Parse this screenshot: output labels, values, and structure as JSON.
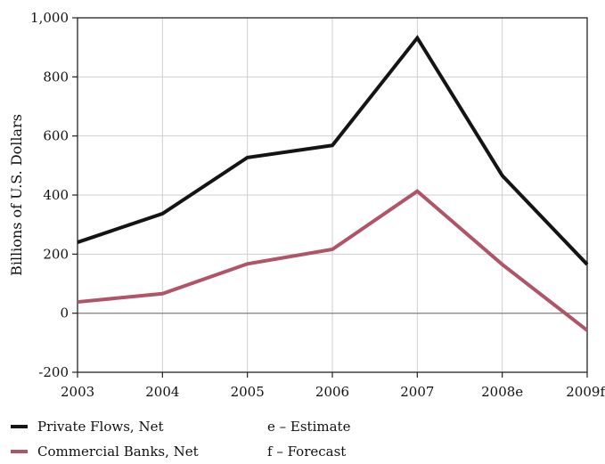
{
  "chart_data": {
    "type": "line",
    "x": [
      "2003",
      "2004",
      "2005",
      "2006",
      "2007",
      "2008e",
      "2009f"
    ],
    "ylabel": "Billions of U.S. Dollars",
    "xlabel": "",
    "ylim": [
      -200,
      1000
    ],
    "yticks": [
      -200,
      0,
      200,
      400,
      600,
      800,
      1000
    ],
    "ytick_labels": [
      "-200",
      "0",
      "200",
      "400",
      "600",
      "800",
      "1,000"
    ],
    "grid": true,
    "legend_position": "bottom",
    "series": [
      {
        "name": "Private Flows, Net",
        "color": "#141414",
        "values": [
          240,
          337,
          527,
          568,
          932,
          466,
          165
        ]
      },
      {
        "name": "Commercial Banks, Net",
        "color": "#b05468",
        "values": [
          38,
          66,
          167,
          216,
          413,
          165,
          -58
        ]
      }
    ],
    "notes": [
      "e – Estimate",
      "f – Forecast"
    ]
  }
}
